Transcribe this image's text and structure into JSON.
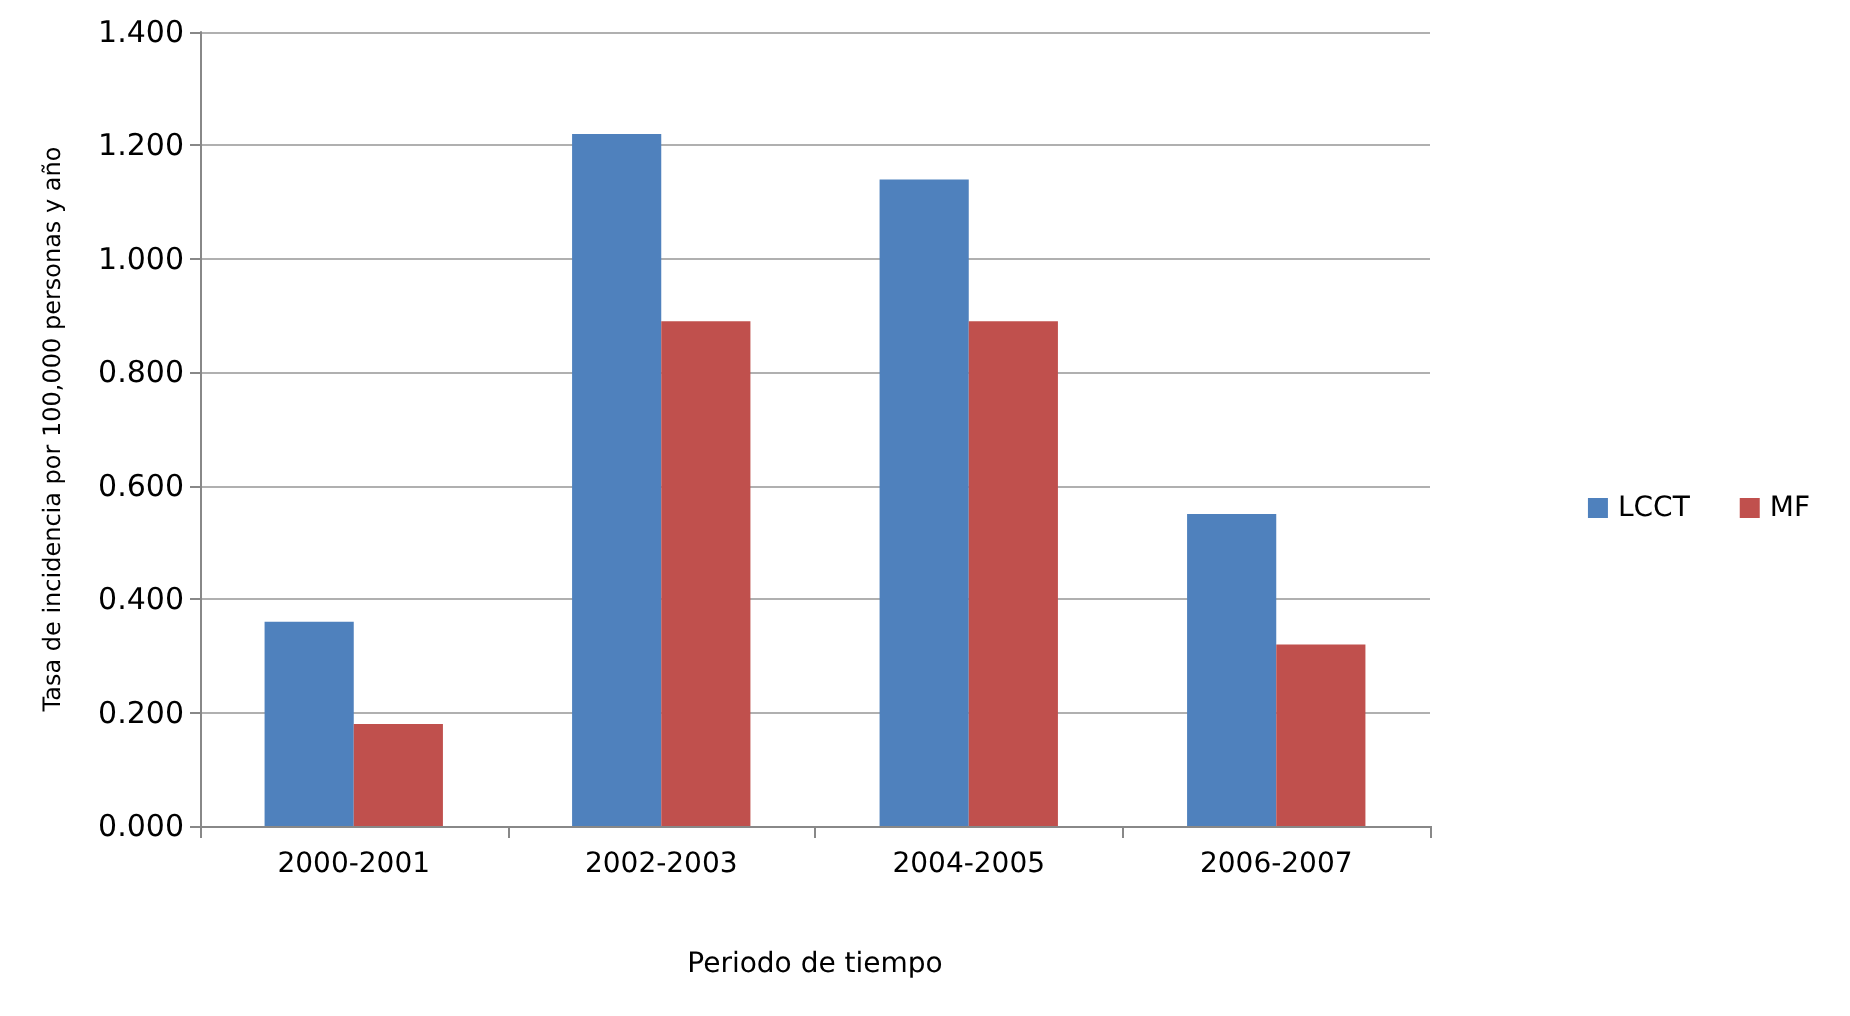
{
  "chart_data": {
    "type": "bar",
    "xlabel": "Periodo de tiempo",
    "ylabel": "Tasa de incidencia por 100,000 personas y año",
    "categories": [
      "2000-2001",
      "2002-2003",
      "2004-2005",
      "2006-2007"
    ],
    "series": [
      {
        "name": "LCCT",
        "color": "#4f81bd",
        "values": [
          0.36,
          1.22,
          1.14,
          0.55
        ]
      },
      {
        "name": "MF",
        "color": "#c0504d",
        "values": [
          0.18,
          0.89,
          0.89,
          0.32
        ]
      }
    ],
    "ylim": [
      0,
      1.4
    ],
    "yticks": [
      {
        "value": 0,
        "label": "0.000"
      },
      {
        "value": 0.2,
        "label": "0.200"
      },
      {
        "value": 0.4,
        "label": "0.400"
      },
      {
        "value": 0.6,
        "label": "0.600"
      },
      {
        "value": 0.8,
        "label": "0.800"
      },
      {
        "value": 1,
        "label": "1.000"
      },
      {
        "value": 1.2,
        "label": "1.200"
      },
      {
        "value": 1.4,
        "label": "1.400"
      }
    ],
    "grid": "y",
    "legend": "right"
  }
}
